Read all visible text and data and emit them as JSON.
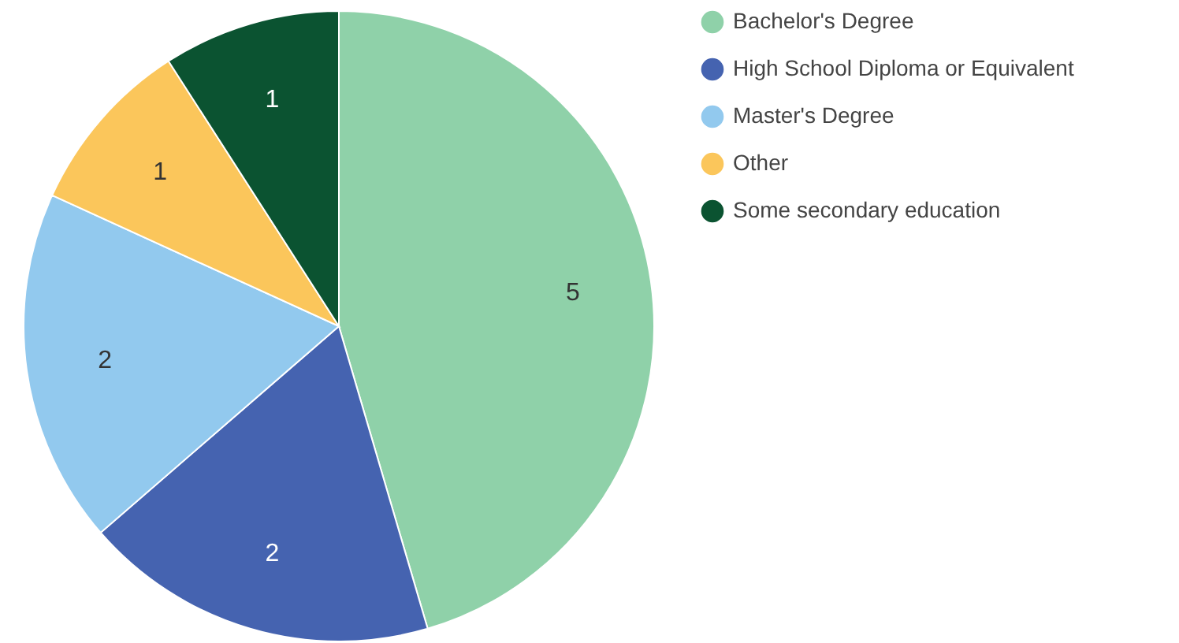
{
  "chart_data": {
    "type": "pie",
    "categories": [
      "Bachelor's Degree",
      "High School Diploma or Equivalent",
      "Master's Degree",
      "Other",
      "Some secondary education"
    ],
    "values": [
      5,
      2,
      2,
      1,
      1
    ],
    "colors": [
      "#8fd1a9",
      "#4563b0",
      "#92c9ee",
      "#fbc65b",
      "#0b5331"
    ],
    "data_labels": true,
    "legend": "right"
  }
}
